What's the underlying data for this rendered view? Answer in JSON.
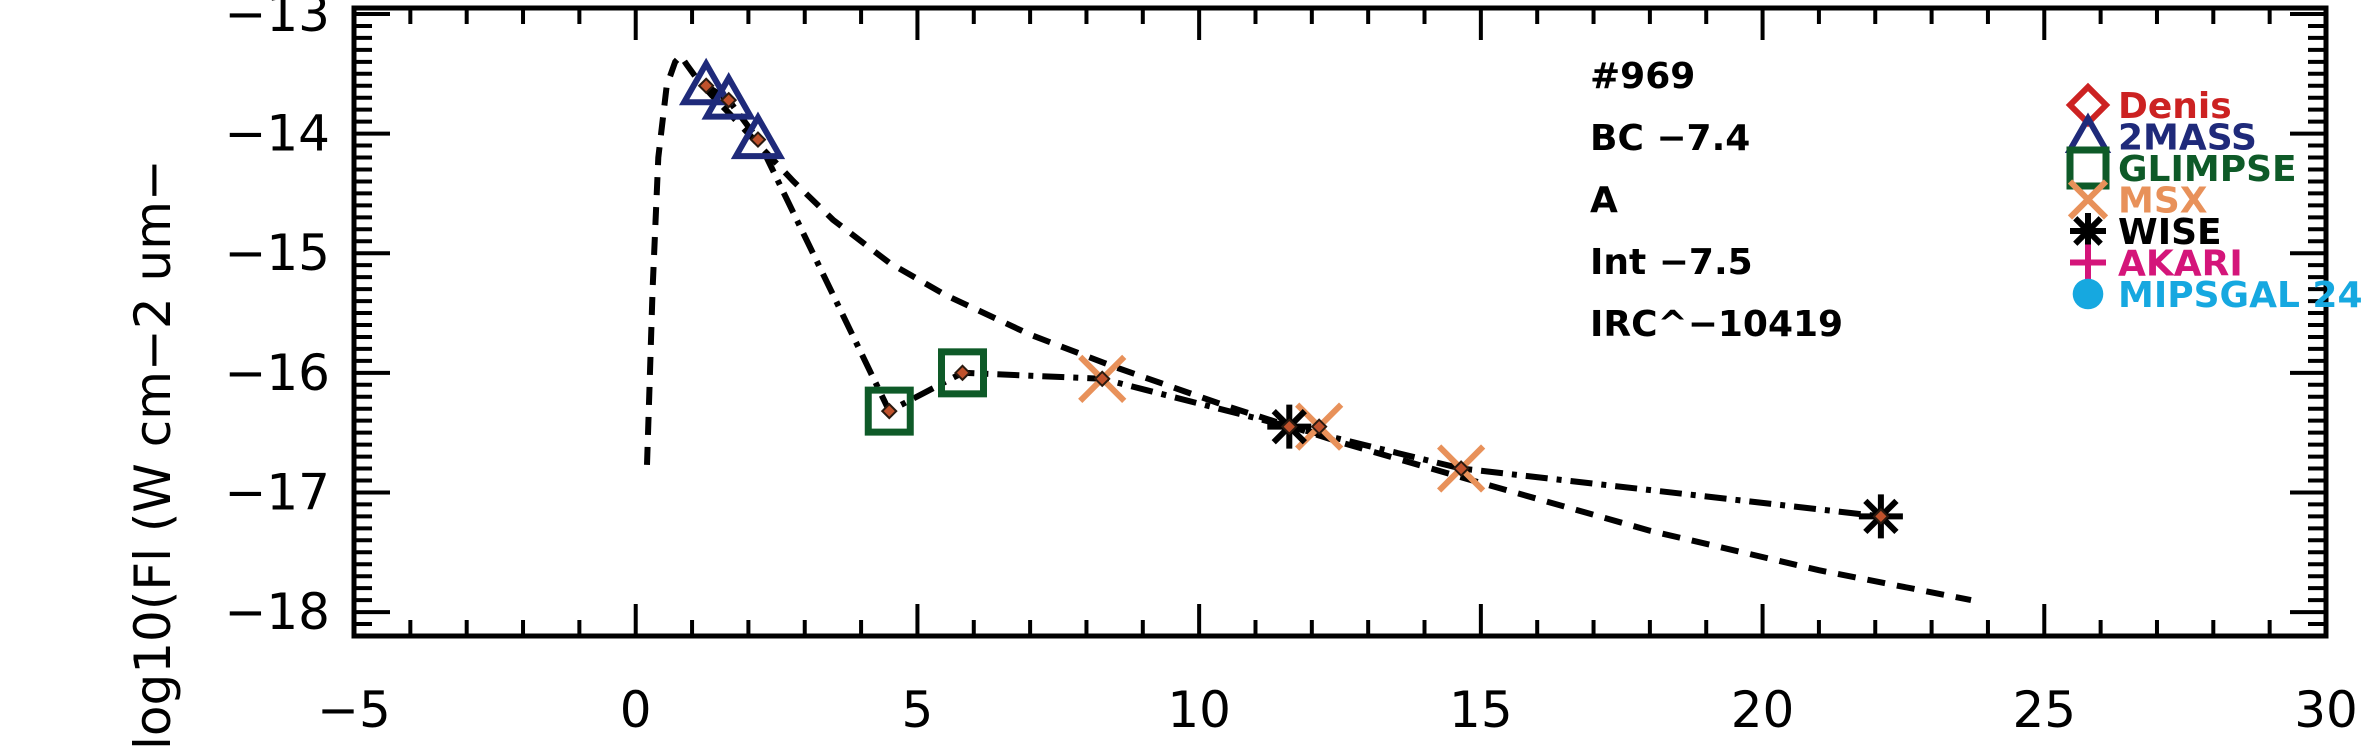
{
  "chart_data": {
    "type": "scatter",
    "title": "",
    "xlabel": "",
    "ylabel": "log10(Fl (W cm−2 um−",
    "xlim": [
      -5,
      30
    ],
    "ylim": [
      -18.2,
      -12.95
    ],
    "xticks": [
      -5,
      0,
      5,
      10,
      15,
      20,
      25,
      30
    ],
    "xtick_labels": [
      "−5",
      "0",
      "5",
      "10",
      "15",
      "20",
      "25",
      "30"
    ],
    "yticks": [
      -18,
      -17,
      -16,
      -15,
      -14,
      -13
    ],
    "ytick_labels": [
      "−18",
      "−17",
      "−16",
      "−15",
      "−14",
      "−13"
    ],
    "annotations": [
      "#969",
      "BC −7.4",
      "A",
      "Int −7.5",
      "IRC^−10419"
    ],
    "legend": [
      {
        "label": "Denis",
        "color": "#cc2222",
        "marker": "diamond"
      },
      {
        "label": "2MASS",
        "color": "#1f2a7a",
        "marker": "triangle"
      },
      {
        "label": "GLIMPSE",
        "color": "#0e5a28",
        "marker": "square"
      },
      {
        "label": "MSX",
        "color": "#e8915a",
        "marker": "x"
      },
      {
        "label": "WISE",
        "color": "#000000",
        "marker": "asterisk"
      },
      {
        "label": "AKARI",
        "color": "#d4157a",
        "marker": "plus"
      },
      {
        "label": "MIPSGAL 24",
        "color": "#16a8e0",
        "marker": "circle"
      }
    ],
    "series": [
      {
        "name": "2MASS",
        "marker": "triangle",
        "color": "#1f2a7a",
        "x": [
          1.25,
          1.65,
          2.17
        ],
        "y": [
          -13.6,
          -13.72,
          -14.05
        ]
      },
      {
        "name": "GLIMPSE",
        "marker": "square",
        "color": "#0e5a28",
        "x": [
          4.5,
          5.8
        ],
        "y": [
          -16.32,
          -16.0
        ]
      },
      {
        "name": "MSX",
        "marker": "x",
        "color": "#e8915a",
        "x": [
          8.28,
          12.13,
          14.65
        ],
        "y": [
          -16.05,
          -16.45,
          -16.8
        ]
      },
      {
        "name": "WISE",
        "marker": "asterisk",
        "color": "#000000",
        "x": [
          11.6,
          22.1
        ],
        "y": [
          -16.45,
          -17.2
        ]
      },
      {
        "name": "",
        "marker": "small-diamond",
        "color": "#c0522c",
        "x": [
          1.25,
          1.65,
          2.17,
          4.5,
          5.8,
          8.28,
          11.6,
          12.13,
          14.65,
          22.1
        ],
        "y": [
          -13.6,
          -13.72,
          -14.05,
          -16.32,
          -16.0,
          -16.05,
          -16.45,
          -16.45,
          -16.8,
          -17.2
        ]
      },
      {
        "name": "",
        "line": "dashdot",
        "x": [
          1.25,
          1.65,
          2.17,
          4.5,
          5.8,
          8.28,
          11.6,
          14.65,
          22.1
        ],
        "y": [
          -13.6,
          -13.72,
          -14.05,
          -16.32,
          -16.0,
          -16.05,
          -16.45,
          -16.8,
          -17.2
        ]
      },
      {
        "name": "",
        "line": "dashed",
        "x": [
          0.2,
          0.24,
          0.3,
          0.4,
          0.55,
          0.7,
          0.8,
          0.9,
          1.1,
          1.35,
          1.7,
          2.2,
          2.8,
          3.5,
          4.5,
          5.5,
          7.0,
          8.5,
          10.5,
          12.5,
          15.0,
          18.0,
          21.0,
          23.7
        ],
        "y": [
          -16.77,
          -16.2,
          -15.3,
          -14.2,
          -13.6,
          -13.4,
          -13.35,
          -13.42,
          -13.55,
          -13.68,
          -13.85,
          -14.1,
          -14.4,
          -14.72,
          -15.08,
          -15.35,
          -15.68,
          -15.95,
          -16.28,
          -16.58,
          -16.92,
          -17.32,
          -17.65,
          -17.9
        ]
      }
    ]
  }
}
